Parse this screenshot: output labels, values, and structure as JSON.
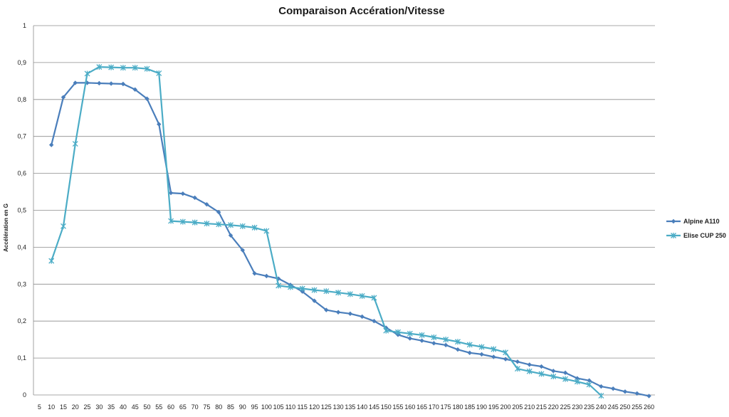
{
  "chart_data": {
    "type": "line",
    "title": "Comparaison Accération/Vitesse",
    "xlabel": "",
    "ylabel": "Accélération en G",
    "ylim": [
      0,
      1
    ],
    "yticks": [
      "0",
      "0,1",
      "0,2",
      "0,3",
      "0,4",
      "0,5",
      "0,6",
      "0,7",
      "0,8",
      "0,9",
      "1"
    ],
    "grid": true,
    "legend_position": "right",
    "categories": [
      "5",
      "10",
      "15",
      "20",
      "25",
      "30",
      "35",
      "40",
      "45",
      "50",
      "55",
      "60",
      "65",
      "70",
      "75",
      "80",
      "85",
      "90",
      "95",
      "100",
      "105",
      "110",
      "115",
      "120",
      "125",
      "130",
      "135",
      "140",
      "145",
      "150",
      "155",
      "160",
      "165",
      "170",
      "175",
      "180",
      "185",
      "190",
      "195",
      "200",
      "205",
      "210",
      "215",
      "220",
      "225",
      "230",
      "235",
      "240",
      "245",
      "250",
      "255",
      "260"
    ],
    "series": [
      {
        "name": "Alpine A110",
        "color": "#4a7ebb",
        "marker": "diamond",
        "values": [
          null,
          0.677,
          0.806,
          0.845,
          0.845,
          0.844,
          0.843,
          0.842,
          0.827,
          0.802,
          0.733,
          0.547,
          0.545,
          0.534,
          0.516,
          0.495,
          0.432,
          0.392,
          0.329,
          0.322,
          0.315,
          0.298,
          0.28,
          0.255,
          0.23,
          0.224,
          0.22,
          0.212,
          0.2,
          0.182,
          0.163,
          0.153,
          0.147,
          0.14,
          0.135,
          0.123,
          0.114,
          0.11,
          0.103,
          0.097,
          0.09,
          0.082,
          0.077,
          0.065,
          0.06,
          0.045,
          0.039,
          0.023,
          0.017,
          0.009,
          0.004,
          -0.003
        ]
      },
      {
        "name": "Elise CUP 250",
        "color": "#4bacc6",
        "marker": "star",
        "values": [
          null,
          0.363,
          0.457,
          0.68,
          0.87,
          0.888,
          0.887,
          0.886,
          0.886,
          0.883,
          0.871,
          0.471,
          0.469,
          0.467,
          0.464,
          0.462,
          0.46,
          0.457,
          0.453,
          0.444,
          0.296,
          0.292,
          0.288,
          0.284,
          0.281,
          0.277,
          0.273,
          0.268,
          0.263,
          0.174,
          0.17,
          0.166,
          0.162,
          0.156,
          0.15,
          0.144,
          0.136,
          0.13,
          0.124,
          0.115,
          0.071,
          0.064,
          0.057,
          0.05,
          0.043,
          0.036,
          0.028,
          -0.002,
          null,
          null,
          null,
          null
        ]
      }
    ]
  }
}
